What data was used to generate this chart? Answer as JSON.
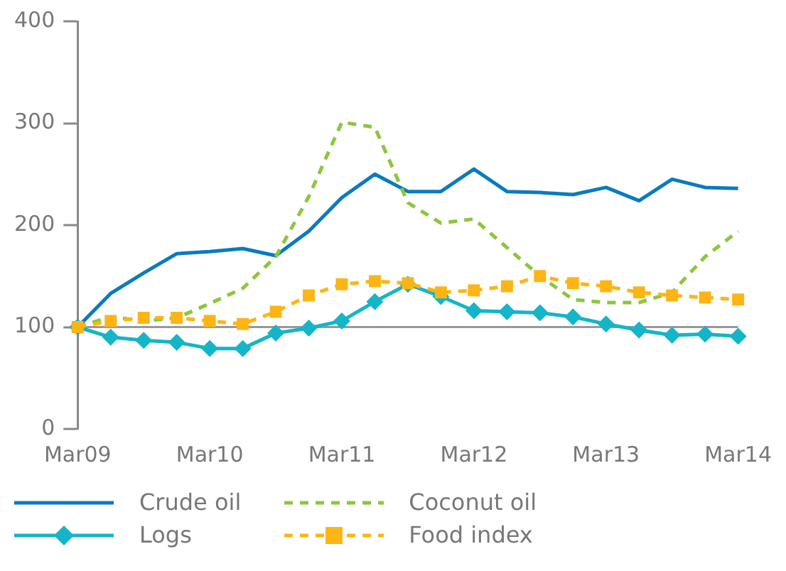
{
  "chart_data": {
    "type": "line",
    "categories": [
      "Mar09",
      null,
      null,
      null,
      "Mar10",
      null,
      null,
      null,
      "Mar11",
      null,
      null,
      null,
      "Mar12",
      null,
      null,
      null,
      "Mar13",
      null,
      null,
      null,
      "Mar14"
    ],
    "series": [
      {
        "name": "Crude oil",
        "color": "#0a7bbf",
        "marker": "none",
        "line_style": "solid",
        "values": [
          100,
          133,
          153,
          172,
          174,
          177,
          170,
          194,
          227,
          250,
          233,
          233,
          255,
          233,
          232,
          230,
          237,
          224,
          245,
          237,
          236
        ]
      },
      {
        "name": "Coconut oil",
        "color": "#8cc63f",
        "marker": "none",
        "line_style": "dashed",
        "values": [
          100,
          110,
          106,
          109,
          123,
          138,
          169,
          228,
          301,
          296,
          222,
          202,
          206,
          178,
          150,
          127,
          124,
          124,
          134,
          169,
          194
        ]
      },
      {
        "name": "Logs",
        "color": "#14b5c8",
        "marker": "diamond",
        "line_style": "solid",
        "values": [
          100,
          90,
          87,
          85,
          79,
          79,
          94,
          99,
          106,
          125,
          142,
          130,
          116,
          115,
          114,
          110,
          103,
          97,
          92,
          93,
          91
        ]
      },
      {
        "name": "Food index",
        "color": "#fdb515",
        "marker": "square",
        "line_style": "dashed",
        "values": [
          100,
          106,
          109,
          109,
          106,
          103,
          115,
          131,
          142,
          145,
          143,
          134,
          136,
          140,
          150,
          143,
          140,
          134,
          131,
          129,
          127
        ]
      }
    ],
    "ylim": [
      0,
      400
    ],
    "yticks": [
      0,
      100,
      200,
      300,
      400
    ],
    "ref_lines": [
      {
        "axis": "y",
        "value": 100,
        "color": "#999999"
      }
    ],
    "grid": false,
    "legend": "bottom"
  }
}
